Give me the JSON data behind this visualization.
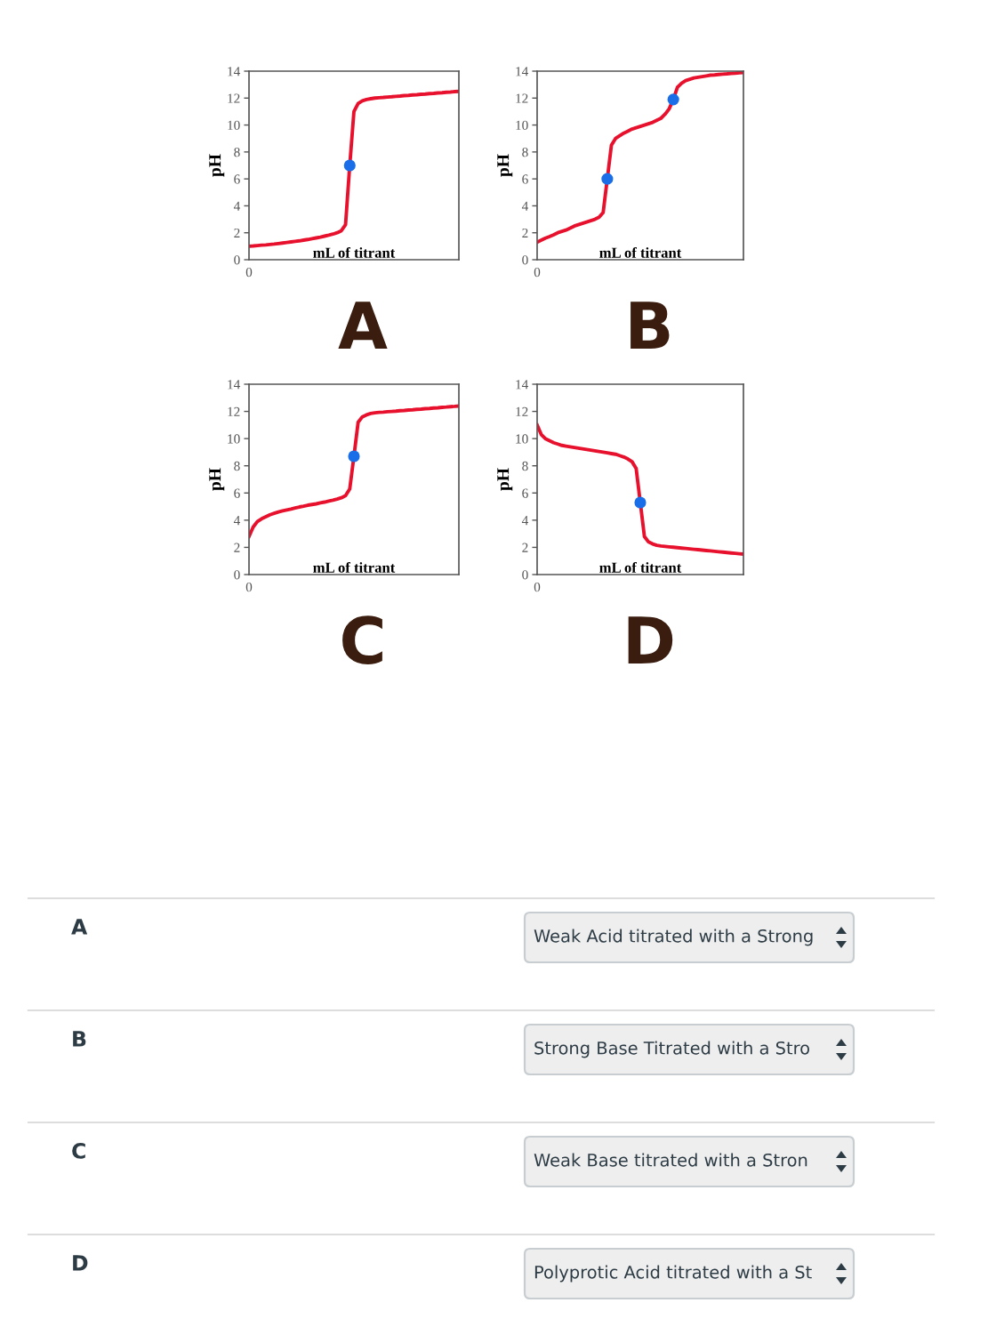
{
  "chart_data": [
    {
      "type": "line",
      "xlabel": "mL of titrant",
      "ylabel": "pH",
      "annotations": [
        "0",
        "A"
      ],
      "ylim": [
        0,
        14
      ],
      "yticks": [
        0,
        2,
        4,
        6,
        8,
        10,
        12,
        14
      ],
      "grid": false,
      "legend": false,
      "categories": [
        null,
        null,
        null,
        null,
        null,
        null,
        null,
        null,
        null,
        null,
        null,
        null,
        null,
        null,
        null,
        null,
        null,
        null,
        null,
        null,
        null,
        null,
        null,
        null,
        null,
        null,
        null,
        null,
        null,
        null,
        null,
        null,
        null,
        null,
        null,
        null,
        null,
        null,
        null,
        null,
        null,
        null,
        null,
        null,
        null,
        null,
        null,
        null,
        null,
        null,
        null
      ],
      "series": [
        {
          "type": "line",
          "color": "#e8112d",
          "values": [
            1.0,
            1.02,
            1.05,
            1.08,
            1.1,
            1.13,
            1.16,
            1.2,
            1.24,
            1.28,
            1.32,
            1.36,
            1.4,
            1.45,
            1.5,
            1.56,
            1.62,
            1.68,
            1.75,
            1.82,
            1.9,
            2.0,
            2.15,
            2.6,
            7,
            11.0,
            11.6,
            11.8,
            11.9,
            11.95,
            12.0,
            12.03,
            12.05,
            12.08,
            12.1,
            12.13,
            12.15,
            12.18,
            12.2,
            12.23,
            12.25,
            12.28,
            12.3,
            12.33,
            12.35,
            12.38,
            12.4,
            12.43,
            12.45,
            12.48,
            12.5
          ]
        },
        {
          "type": "scatter",
          "color": "#1a6ee8",
          "values": [
            null,
            null,
            null,
            null,
            null,
            null,
            null,
            null,
            null,
            null,
            null,
            null,
            null,
            null,
            null,
            null,
            null,
            null,
            null,
            null,
            null,
            null,
            null,
            null,
            7,
            null,
            null,
            null,
            null,
            null,
            null,
            null,
            null,
            null,
            null,
            null,
            null,
            null,
            null,
            null,
            null,
            null,
            null,
            null,
            null,
            null,
            null,
            null,
            null,
            null,
            null
          ]
        }
      ]
    },
    {
      "type": "line",
      "xlabel": "mL of titrant",
      "ylabel": "pH",
      "annotations": [
        "0",
        "C"
      ],
      "ylim": [
        0,
        14
      ],
      "yticks": [
        0,
        2,
        4,
        6,
        8,
        10,
        12,
        14
      ],
      "grid": false,
      "legend": false,
      "categories": [
        null,
        null,
        null,
        null,
        null,
        null,
        null,
        null,
        null,
        null,
        null,
        null,
        null,
        null,
        null,
        null,
        null,
        null,
        null,
        null,
        null,
        null,
        null,
        null,
        null,
        null,
        null,
        null,
        null,
        null,
        null,
        null,
        null,
        null,
        null,
        null,
        null,
        null,
        null,
        null,
        null,
        null,
        null,
        null,
        null,
        null,
        null,
        null,
        null,
        null,
        null
      ],
      "series": [
        {
          "type": "line",
          "color": "#e8112d",
          "values": [
            2.8,
            3.5,
            3.9,
            4.1,
            4.25,
            4.4,
            4.5,
            4.6,
            4.68,
            4.75,
            4.82,
            4.9,
            4.97,
            5.03,
            5.1,
            5.15,
            5.2,
            5.27,
            5.33,
            5.4,
            5.47,
            5.55,
            5.65,
            5.8,
            6.3,
            8.7,
            11.2,
            11.6,
            11.75,
            11.85,
            11.9,
            11.93,
            11.95,
            11.98,
            12.0,
            12.02,
            12.05,
            12.07,
            12.1,
            12.12,
            12.15,
            12.17,
            12.2,
            12.22,
            12.25,
            12.27,
            12.3,
            12.32,
            12.35,
            12.37,
            12.4
          ]
        },
        {
          "type": "scatter",
          "color": "#1a6ee8",
          "values": [
            null,
            null,
            null,
            null,
            null,
            null,
            null,
            null,
            null,
            null,
            null,
            null,
            null,
            null,
            null,
            null,
            null,
            null,
            null,
            null,
            null,
            null,
            null,
            null,
            null,
            8.7,
            null,
            null,
            null,
            null,
            null,
            null,
            null,
            null,
            null,
            null,
            null,
            null,
            null,
            null,
            null,
            null,
            null,
            null,
            null,
            null,
            null,
            null,
            null,
            null,
            null
          ]
        }
      ]
    },
    {
      "type": "line",
      "xlabel": "mL of titrant",
      "ylabel": "pH",
      "annotations": [
        "0",
        "B"
      ],
      "ylim": [
        0,
        14
      ],
      "yticks": [
        0,
        2,
        4,
        6,
        8,
        10,
        12,
        14
      ],
      "grid": false,
      "legend": false,
      "categories": [
        null,
        null,
        null,
        null,
        null,
        null,
        null,
        null,
        null,
        null,
        null,
        null,
        null,
        null,
        null,
        null,
        null,
        null,
        null,
        null,
        null,
        null,
        null,
        null,
        null,
        null,
        null,
        null,
        null,
        null,
        null,
        null,
        null,
        null,
        null,
        null,
        null,
        null,
        null,
        null,
        null,
        null,
        null,
        null,
        null,
        null,
        null,
        null,
        null,
        null,
        null
      ],
      "series": [
        {
          "type": "line",
          "color": "#e8112d",
          "values": [
            1.3,
            1.45,
            1.6,
            1.72,
            1.85,
            2.0,
            2.1,
            2.2,
            2.35,
            2.5,
            2.6,
            2.7,
            2.8,
            2.9,
            3.0,
            3.15,
            3.5,
            6,
            8.5,
            9.0,
            9.2,
            9.4,
            9.55,
            9.7,
            9.8,
            9.9,
            10.0,
            10.1,
            10.2,
            10.35,
            10.5,
            10.8,
            11.2,
            11.9,
            12.8,
            13.1,
            13.3,
            13.4,
            13.5,
            13.55,
            13.6,
            13.65,
            13.7,
            13.72,
            13.75,
            13.78,
            13.8,
            13.83,
            13.85,
            13.88,
            13.9
          ]
        },
        {
          "type": "scatter",
          "color": "#1a6ee8",
          "values": [
            null,
            null,
            null,
            null,
            null,
            null,
            null,
            null,
            null,
            null,
            null,
            null,
            null,
            null,
            null,
            null,
            null,
            6,
            null,
            null,
            null,
            null,
            null,
            null,
            null,
            null,
            null,
            null,
            null,
            null,
            null,
            null,
            null,
            11.9,
            null,
            null,
            null,
            null,
            null,
            null,
            null,
            null,
            null,
            null,
            null,
            null,
            null,
            null,
            null,
            null,
            null
          ]
        }
      ]
    },
    {
      "type": "line",
      "xlabel": "mL of titrant",
      "ylabel": "pH",
      "annotations": [
        "0",
        "D"
      ],
      "ylim": [
        0,
        14
      ],
      "yticks": [
        0,
        2,
        4,
        6,
        8,
        10,
        12,
        14
      ],
      "grid": false,
      "legend": false,
      "categories": [
        null,
        null,
        null,
        null,
        null,
        null,
        null,
        null,
        null,
        null,
        null,
        null,
        null,
        null,
        null,
        null,
        null,
        null,
        null,
        null,
        null,
        null,
        null,
        null,
        null,
        null,
        null,
        null,
        null,
        null,
        null,
        null,
        null,
        null,
        null,
        null,
        null,
        null,
        null,
        null,
        null,
        null,
        null,
        null,
        null,
        null,
        null,
        null,
        null,
        null,
        null
      ],
      "series": [
        {
          "type": "line",
          "color": "#e8112d",
          "values": [
            11.0,
            10.3,
            10.0,
            9.85,
            9.7,
            9.6,
            9.5,
            9.45,
            9.4,
            9.35,
            9.3,
            9.25,
            9.2,
            9.15,
            9.1,
            9.05,
            9.0,
            8.95,
            8.9,
            8.85,
            8.75,
            8.65,
            8.5,
            8.3,
            7.8,
            5.3,
            2.8,
            2.4,
            2.25,
            2.15,
            2.1,
            2.07,
            2.04,
            2.01,
            1.98,
            1.95,
            1.92,
            1.89,
            1.86,
            1.83,
            1.8,
            1.77,
            1.74,
            1.71,
            1.68,
            1.65,
            1.62,
            1.59,
            1.56,
            1.53,
            1.5
          ]
        },
        {
          "type": "scatter",
          "color": "#1a6ee8",
          "values": [
            null,
            null,
            null,
            null,
            null,
            null,
            null,
            null,
            null,
            null,
            null,
            null,
            null,
            null,
            null,
            null,
            null,
            null,
            null,
            null,
            null,
            null,
            null,
            null,
            null,
            5.3,
            null,
            null,
            null,
            null,
            null,
            null,
            null,
            null,
            null,
            null,
            null,
            null,
            null,
            null,
            null,
            null,
            null,
            null,
            null,
            null,
            null,
            null,
            null,
            null,
            null
          ]
        }
      ]
    },
    {
      "type": "other",
      "categories": [
        "A",
        "B",
        "C",
        "D"
      ],
      "annotations": [
        "Weak Acid titrated with a Strong",
        "Strong Base Titrated with a Stro",
        "Weak Base titrated with a Stron",
        "Polyprotic Acid titrated with a St"
      ]
    }
  ]
}
